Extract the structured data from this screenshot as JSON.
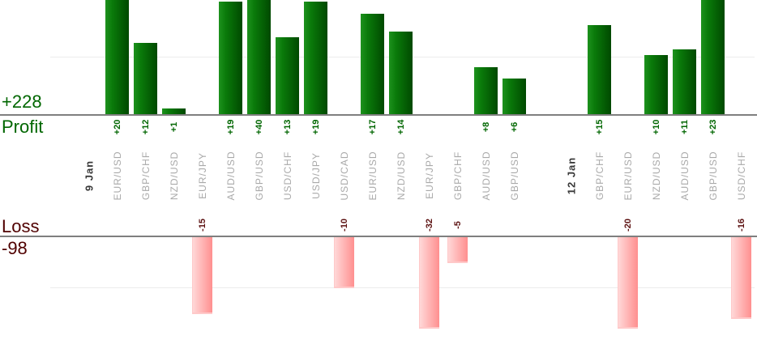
{
  "summary": {
    "profit_total": "+228",
    "profit_label": "Profit",
    "loss_label": "Loss",
    "loss_total": "-98"
  },
  "colors": {
    "profit_text": "#006600",
    "loss_text": "#500000",
    "profit_value_text": "#006600",
    "loss_value_text": "#5c1111",
    "pair_label_text": "#a9a9a9",
    "date_label_text": "#3a3a3a",
    "axis_line": "#7f7f7f",
    "gridline": "#ececec",
    "profit_bar_start": "#1d921d",
    "profit_bar_mid": "#0a7a0a",
    "profit_bar_end": "#004900",
    "loss_bar_start": "#ffdbdb",
    "loss_bar_end": "#ff8f8f",
    "loss_bar_edge": "#ffc9c9"
  },
  "chart_data": {
    "type": "bar",
    "title": "",
    "xlabel": "",
    "ylabel_top_panel": "Profit",
    "ylabel_bottom_panel": "Loss",
    "profit_total": 228,
    "loss_total": -98,
    "legend": "none",
    "grid": "on",
    "gridline_values": {
      "profit_panel": [
        10
      ],
      "loss_panel": [
        -10
      ]
    },
    "notes": "Two stacked panels sharing category slots; profit bars grow up from Profit axis, loss bars hang down from Loss axis; bars exceeding panel range are clipped (+20, +40, +23 at top; -32, -20 at bottom). Values labeled beside axis, rotated 90deg.",
    "slots": [
      {
        "kind": "date",
        "label": "9 Jan"
      },
      {
        "kind": "trade",
        "pair": "EUR/USD",
        "value": 20
      },
      {
        "kind": "trade",
        "pair": "GBP/CHF",
        "value": 12
      },
      {
        "kind": "trade",
        "pair": "NZD/USD",
        "value": 1
      },
      {
        "kind": "trade",
        "pair": "EUR/JPY",
        "value": -15
      },
      {
        "kind": "trade",
        "pair": "AUD/USD",
        "value": 19
      },
      {
        "kind": "trade",
        "pair": "GBP/USD",
        "value": 40
      },
      {
        "kind": "trade",
        "pair": "USD/CHF",
        "value": 13
      },
      {
        "kind": "trade",
        "pair": "USD/JPY",
        "value": 19
      },
      {
        "kind": "trade",
        "pair": "USD/CAD",
        "value": -10
      },
      {
        "kind": "trade",
        "pair": "EUR/USD",
        "value": 17
      },
      {
        "kind": "trade",
        "pair": "NZD/USD",
        "value": 14
      },
      {
        "kind": "trade",
        "pair": "EUR/JPY",
        "value": -32
      },
      {
        "kind": "trade",
        "pair": "GBP/CHF",
        "value": -5
      },
      {
        "kind": "trade",
        "pair": "AUD/USD",
        "value": 8
      },
      {
        "kind": "trade",
        "pair": "GBP/USD",
        "value": 6
      },
      {
        "kind": "gap"
      },
      {
        "kind": "date",
        "label": "12 Jan"
      },
      {
        "kind": "trade",
        "pair": "GBP/CHF",
        "value": 15
      },
      {
        "kind": "trade",
        "pair": "EUR/USD",
        "value": -20
      },
      {
        "kind": "trade",
        "pair": "NZD/USD",
        "value": 10
      },
      {
        "kind": "trade",
        "pair": "AUD/USD",
        "value": 11
      },
      {
        "kind": "trade",
        "pair": "GBP/USD",
        "value": 23
      },
      {
        "kind": "trade",
        "pair": "USD/CHF",
        "value": -16
      }
    ]
  }
}
